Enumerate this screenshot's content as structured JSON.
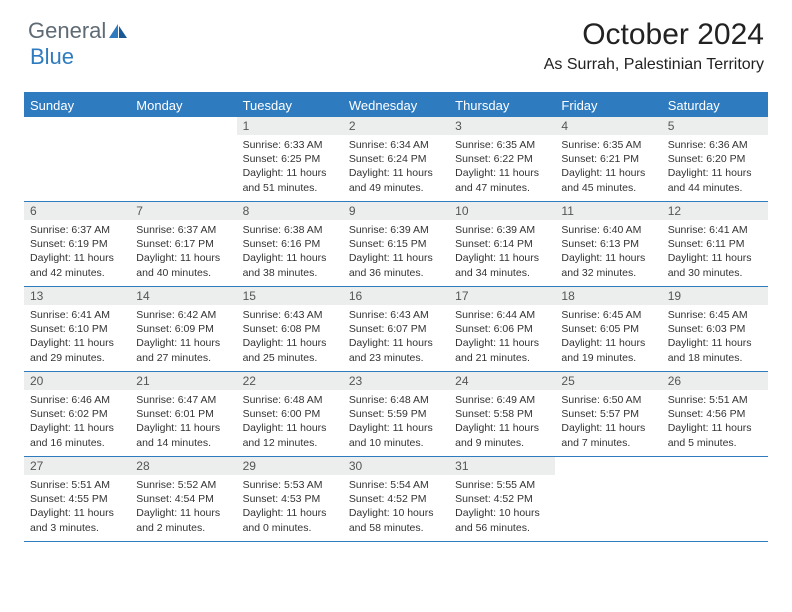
{
  "logo": {
    "word1": "General",
    "word2": "Blue"
  },
  "title": "October 2024",
  "location": "As Surrah, Palestinian Territory",
  "header_color": "#2f7bbf",
  "daynum_bg": "#eceded",
  "divider_color": "#2f7bbf",
  "text_color": "#333333",
  "font_family": "Arial",
  "days": [
    "Sunday",
    "Monday",
    "Tuesday",
    "Wednesday",
    "Thursday",
    "Friday",
    "Saturday"
  ],
  "weeks": [
    [
      {
        "num": "",
        "sunrise": "",
        "sunset": "",
        "daylight": ""
      },
      {
        "num": "",
        "sunrise": "",
        "sunset": "",
        "daylight": ""
      },
      {
        "num": "1",
        "sunrise": "Sunrise: 6:33 AM",
        "sunset": "Sunset: 6:25 PM",
        "daylight": "Daylight: 11 hours and 51 minutes."
      },
      {
        "num": "2",
        "sunrise": "Sunrise: 6:34 AM",
        "sunset": "Sunset: 6:24 PM",
        "daylight": "Daylight: 11 hours and 49 minutes."
      },
      {
        "num": "3",
        "sunrise": "Sunrise: 6:35 AM",
        "sunset": "Sunset: 6:22 PM",
        "daylight": "Daylight: 11 hours and 47 minutes."
      },
      {
        "num": "4",
        "sunrise": "Sunrise: 6:35 AM",
        "sunset": "Sunset: 6:21 PM",
        "daylight": "Daylight: 11 hours and 45 minutes."
      },
      {
        "num": "5",
        "sunrise": "Sunrise: 6:36 AM",
        "sunset": "Sunset: 6:20 PM",
        "daylight": "Daylight: 11 hours and 44 minutes."
      }
    ],
    [
      {
        "num": "6",
        "sunrise": "Sunrise: 6:37 AM",
        "sunset": "Sunset: 6:19 PM",
        "daylight": "Daylight: 11 hours and 42 minutes."
      },
      {
        "num": "7",
        "sunrise": "Sunrise: 6:37 AM",
        "sunset": "Sunset: 6:17 PM",
        "daylight": "Daylight: 11 hours and 40 minutes."
      },
      {
        "num": "8",
        "sunrise": "Sunrise: 6:38 AM",
        "sunset": "Sunset: 6:16 PM",
        "daylight": "Daylight: 11 hours and 38 minutes."
      },
      {
        "num": "9",
        "sunrise": "Sunrise: 6:39 AM",
        "sunset": "Sunset: 6:15 PM",
        "daylight": "Daylight: 11 hours and 36 minutes."
      },
      {
        "num": "10",
        "sunrise": "Sunrise: 6:39 AM",
        "sunset": "Sunset: 6:14 PM",
        "daylight": "Daylight: 11 hours and 34 minutes."
      },
      {
        "num": "11",
        "sunrise": "Sunrise: 6:40 AM",
        "sunset": "Sunset: 6:13 PM",
        "daylight": "Daylight: 11 hours and 32 minutes."
      },
      {
        "num": "12",
        "sunrise": "Sunrise: 6:41 AM",
        "sunset": "Sunset: 6:11 PM",
        "daylight": "Daylight: 11 hours and 30 minutes."
      }
    ],
    [
      {
        "num": "13",
        "sunrise": "Sunrise: 6:41 AM",
        "sunset": "Sunset: 6:10 PM",
        "daylight": "Daylight: 11 hours and 29 minutes."
      },
      {
        "num": "14",
        "sunrise": "Sunrise: 6:42 AM",
        "sunset": "Sunset: 6:09 PM",
        "daylight": "Daylight: 11 hours and 27 minutes."
      },
      {
        "num": "15",
        "sunrise": "Sunrise: 6:43 AM",
        "sunset": "Sunset: 6:08 PM",
        "daylight": "Daylight: 11 hours and 25 minutes."
      },
      {
        "num": "16",
        "sunrise": "Sunrise: 6:43 AM",
        "sunset": "Sunset: 6:07 PM",
        "daylight": "Daylight: 11 hours and 23 minutes."
      },
      {
        "num": "17",
        "sunrise": "Sunrise: 6:44 AM",
        "sunset": "Sunset: 6:06 PM",
        "daylight": "Daylight: 11 hours and 21 minutes."
      },
      {
        "num": "18",
        "sunrise": "Sunrise: 6:45 AM",
        "sunset": "Sunset: 6:05 PM",
        "daylight": "Daylight: 11 hours and 19 minutes."
      },
      {
        "num": "19",
        "sunrise": "Sunrise: 6:45 AM",
        "sunset": "Sunset: 6:03 PM",
        "daylight": "Daylight: 11 hours and 18 minutes."
      }
    ],
    [
      {
        "num": "20",
        "sunrise": "Sunrise: 6:46 AM",
        "sunset": "Sunset: 6:02 PM",
        "daylight": "Daylight: 11 hours and 16 minutes."
      },
      {
        "num": "21",
        "sunrise": "Sunrise: 6:47 AM",
        "sunset": "Sunset: 6:01 PM",
        "daylight": "Daylight: 11 hours and 14 minutes."
      },
      {
        "num": "22",
        "sunrise": "Sunrise: 6:48 AM",
        "sunset": "Sunset: 6:00 PM",
        "daylight": "Daylight: 11 hours and 12 minutes."
      },
      {
        "num": "23",
        "sunrise": "Sunrise: 6:48 AM",
        "sunset": "Sunset: 5:59 PM",
        "daylight": "Daylight: 11 hours and 10 minutes."
      },
      {
        "num": "24",
        "sunrise": "Sunrise: 6:49 AM",
        "sunset": "Sunset: 5:58 PM",
        "daylight": "Daylight: 11 hours and 9 minutes."
      },
      {
        "num": "25",
        "sunrise": "Sunrise: 6:50 AM",
        "sunset": "Sunset: 5:57 PM",
        "daylight": "Daylight: 11 hours and 7 minutes."
      },
      {
        "num": "26",
        "sunrise": "Sunrise: 5:51 AM",
        "sunset": "Sunset: 4:56 PM",
        "daylight": "Daylight: 11 hours and 5 minutes."
      }
    ],
    [
      {
        "num": "27",
        "sunrise": "Sunrise: 5:51 AM",
        "sunset": "Sunset: 4:55 PM",
        "daylight": "Daylight: 11 hours and 3 minutes."
      },
      {
        "num": "28",
        "sunrise": "Sunrise: 5:52 AM",
        "sunset": "Sunset: 4:54 PM",
        "daylight": "Daylight: 11 hours and 2 minutes."
      },
      {
        "num": "29",
        "sunrise": "Sunrise: 5:53 AM",
        "sunset": "Sunset: 4:53 PM",
        "daylight": "Daylight: 11 hours and 0 minutes."
      },
      {
        "num": "30",
        "sunrise": "Sunrise: 5:54 AM",
        "sunset": "Sunset: 4:52 PM",
        "daylight": "Daylight: 10 hours and 58 minutes."
      },
      {
        "num": "31",
        "sunrise": "Sunrise: 5:55 AM",
        "sunset": "Sunset: 4:52 PM",
        "daylight": "Daylight: 10 hours and 56 minutes."
      },
      {
        "num": "",
        "sunrise": "",
        "sunset": "",
        "daylight": ""
      },
      {
        "num": "",
        "sunrise": "",
        "sunset": "",
        "daylight": ""
      }
    ]
  ]
}
